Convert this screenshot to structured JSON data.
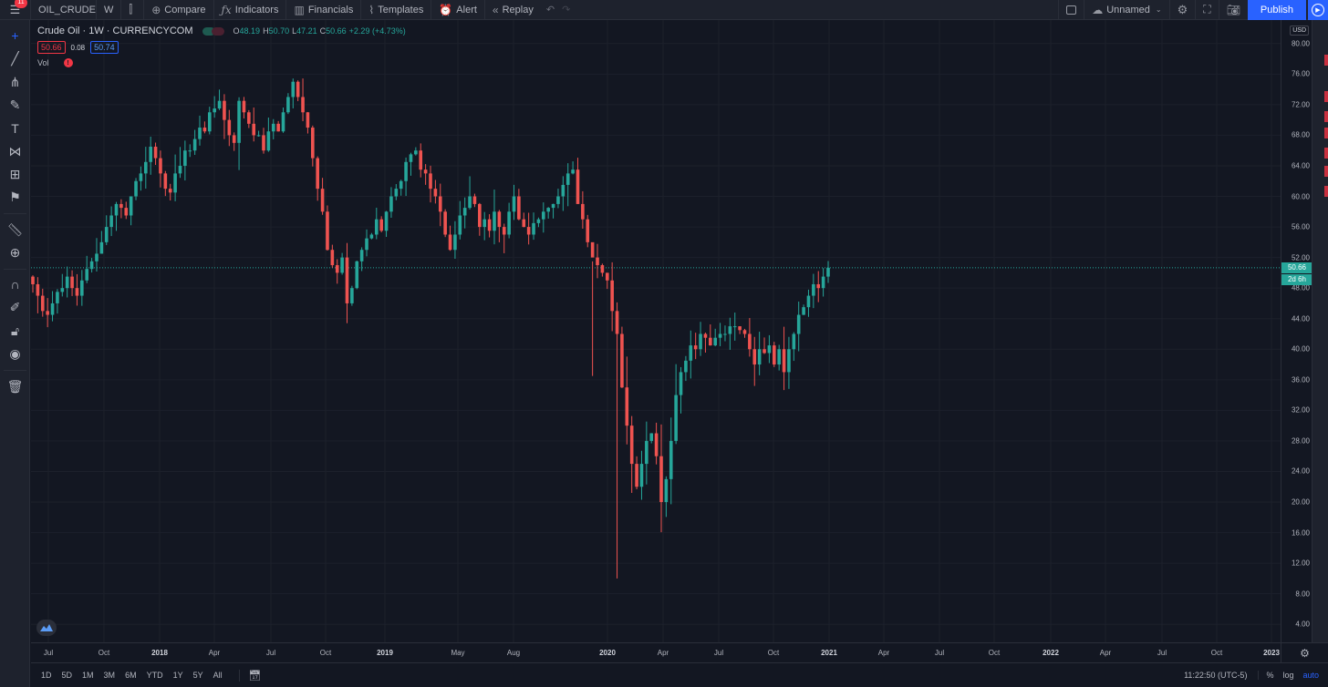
{
  "topbar": {
    "badge": "11",
    "symbol": "OIL_CRUDE",
    "interval": "W",
    "compare": "Compare",
    "indicators": "Indicators",
    "financials": "Financials",
    "templates": "Templates",
    "alert": "Alert",
    "replay": "Replay",
    "layout_name": "Unnamed",
    "publish": "Publish"
  },
  "legend": {
    "title": "Crude Oil · 1W · CURRENCYCOM",
    "open_key": "O",
    "open": "48.19",
    "high_key": "H",
    "high": "50.70",
    "low_key": "L",
    "low": "47.21",
    "close_key": "C",
    "close": "50.66",
    "change": "+2.29 (+4.73%)",
    "bid": "50.66",
    "spread": "0.08",
    "ask": "50.74",
    "volume_label": "Vol",
    "volume_warning": "!"
  },
  "price_axis": {
    "currency": "USD",
    "ticks": [
      "4.00",
      "8.00",
      "12.00",
      "16.00",
      "20.00",
      "24.00",
      "28.00",
      "32.00",
      "36.00",
      "40.00",
      "44.00",
      "48.00",
      "52.00",
      "56.00",
      "60.00",
      "64.00",
      "68.00",
      "72.00",
      "76.00",
      "80.00"
    ],
    "current_price": "50.66",
    "countdown": "2d 6h"
  },
  "time_axis": {
    "labels": [
      "Jul",
      "Oct",
      "2018",
      "Apr",
      "Jul",
      "Oct",
      "2019",
      "May",
      "Aug",
      "2020",
      "Apr",
      "Jul",
      "Oct",
      "2021",
      "Apr",
      "Jul",
      "Oct",
      "2022",
      "Apr",
      "Jul",
      "Oct",
      "2023"
    ]
  },
  "bottombar": {
    "ranges": [
      "1D",
      "5D",
      "1M",
      "3M",
      "6M",
      "YTD",
      "1Y",
      "5Y",
      "All"
    ],
    "clock": "11:22:50 (UTC-5)",
    "percent": "%",
    "log": "log",
    "auto": "auto"
  },
  "colors": {
    "up": "#26a69a",
    "down": "#ef5350",
    "background": "#131722",
    "accent": "#2962ff"
  },
  "chart_data": {
    "type": "candlestick",
    "symbol": "Crude Oil",
    "interval": "1W",
    "ylim": [
      4,
      82
    ],
    "grid": true,
    "closes": [
      48.5,
      47,
      45,
      44.5,
      46,
      47.5,
      48,
      49.5,
      48,
      47,
      49,
      50.5,
      51.5,
      52.5,
      54,
      56,
      57.5,
      59,
      58.5,
      57.5,
      60,
      62,
      63,
      64.5,
      66.5,
      65,
      63,
      61,
      60.5,
      63,
      64,
      66,
      66,
      67.5,
      69,
      68.5,
      71,
      71.5,
      72.5,
      70,
      68,
      67,
      72.5,
      71,
      69.5,
      68,
      68,
      66,
      68.5,
      69.5,
      68.5,
      71,
      73,
      75,
      73,
      71,
      69,
      65,
      61,
      58,
      53,
      51,
      50,
      52,
      46,
      48,
      51.5,
      53,
      54.5,
      55,
      57,
      55.5,
      58,
      60,
      61,
      62,
      64.5,
      65.5,
      66,
      63.5,
      63,
      61,
      60,
      58,
      55,
      53,
      55,
      57.5,
      58.5,
      60,
      59,
      56,
      57,
      55.5,
      58,
      56,
      55,
      58,
      60,
      57,
      56,
      55,
      56.5,
      57,
      58,
      58.5,
      59,
      60,
      61.5,
      63,
      63.5,
      59,
      57,
      54,
      52,
      51,
      50,
      49,
      45,
      42,
      35,
      30,
      25,
      22,
      25,
      28,
      29,
      26,
      20,
      23,
      28,
      34,
      37,
      38.5,
      40.5,
      40,
      42,
      41.5,
      40.5,
      41.5,
      42,
      42,
      43,
      43,
      42.5,
      42,
      40,
      38,
      40,
      39.5,
      40.5,
      38,
      40,
      37,
      40,
      42,
      44.5,
      45.5,
      47,
      48.5,
      48,
      49.5,
      50.66
    ]
  }
}
